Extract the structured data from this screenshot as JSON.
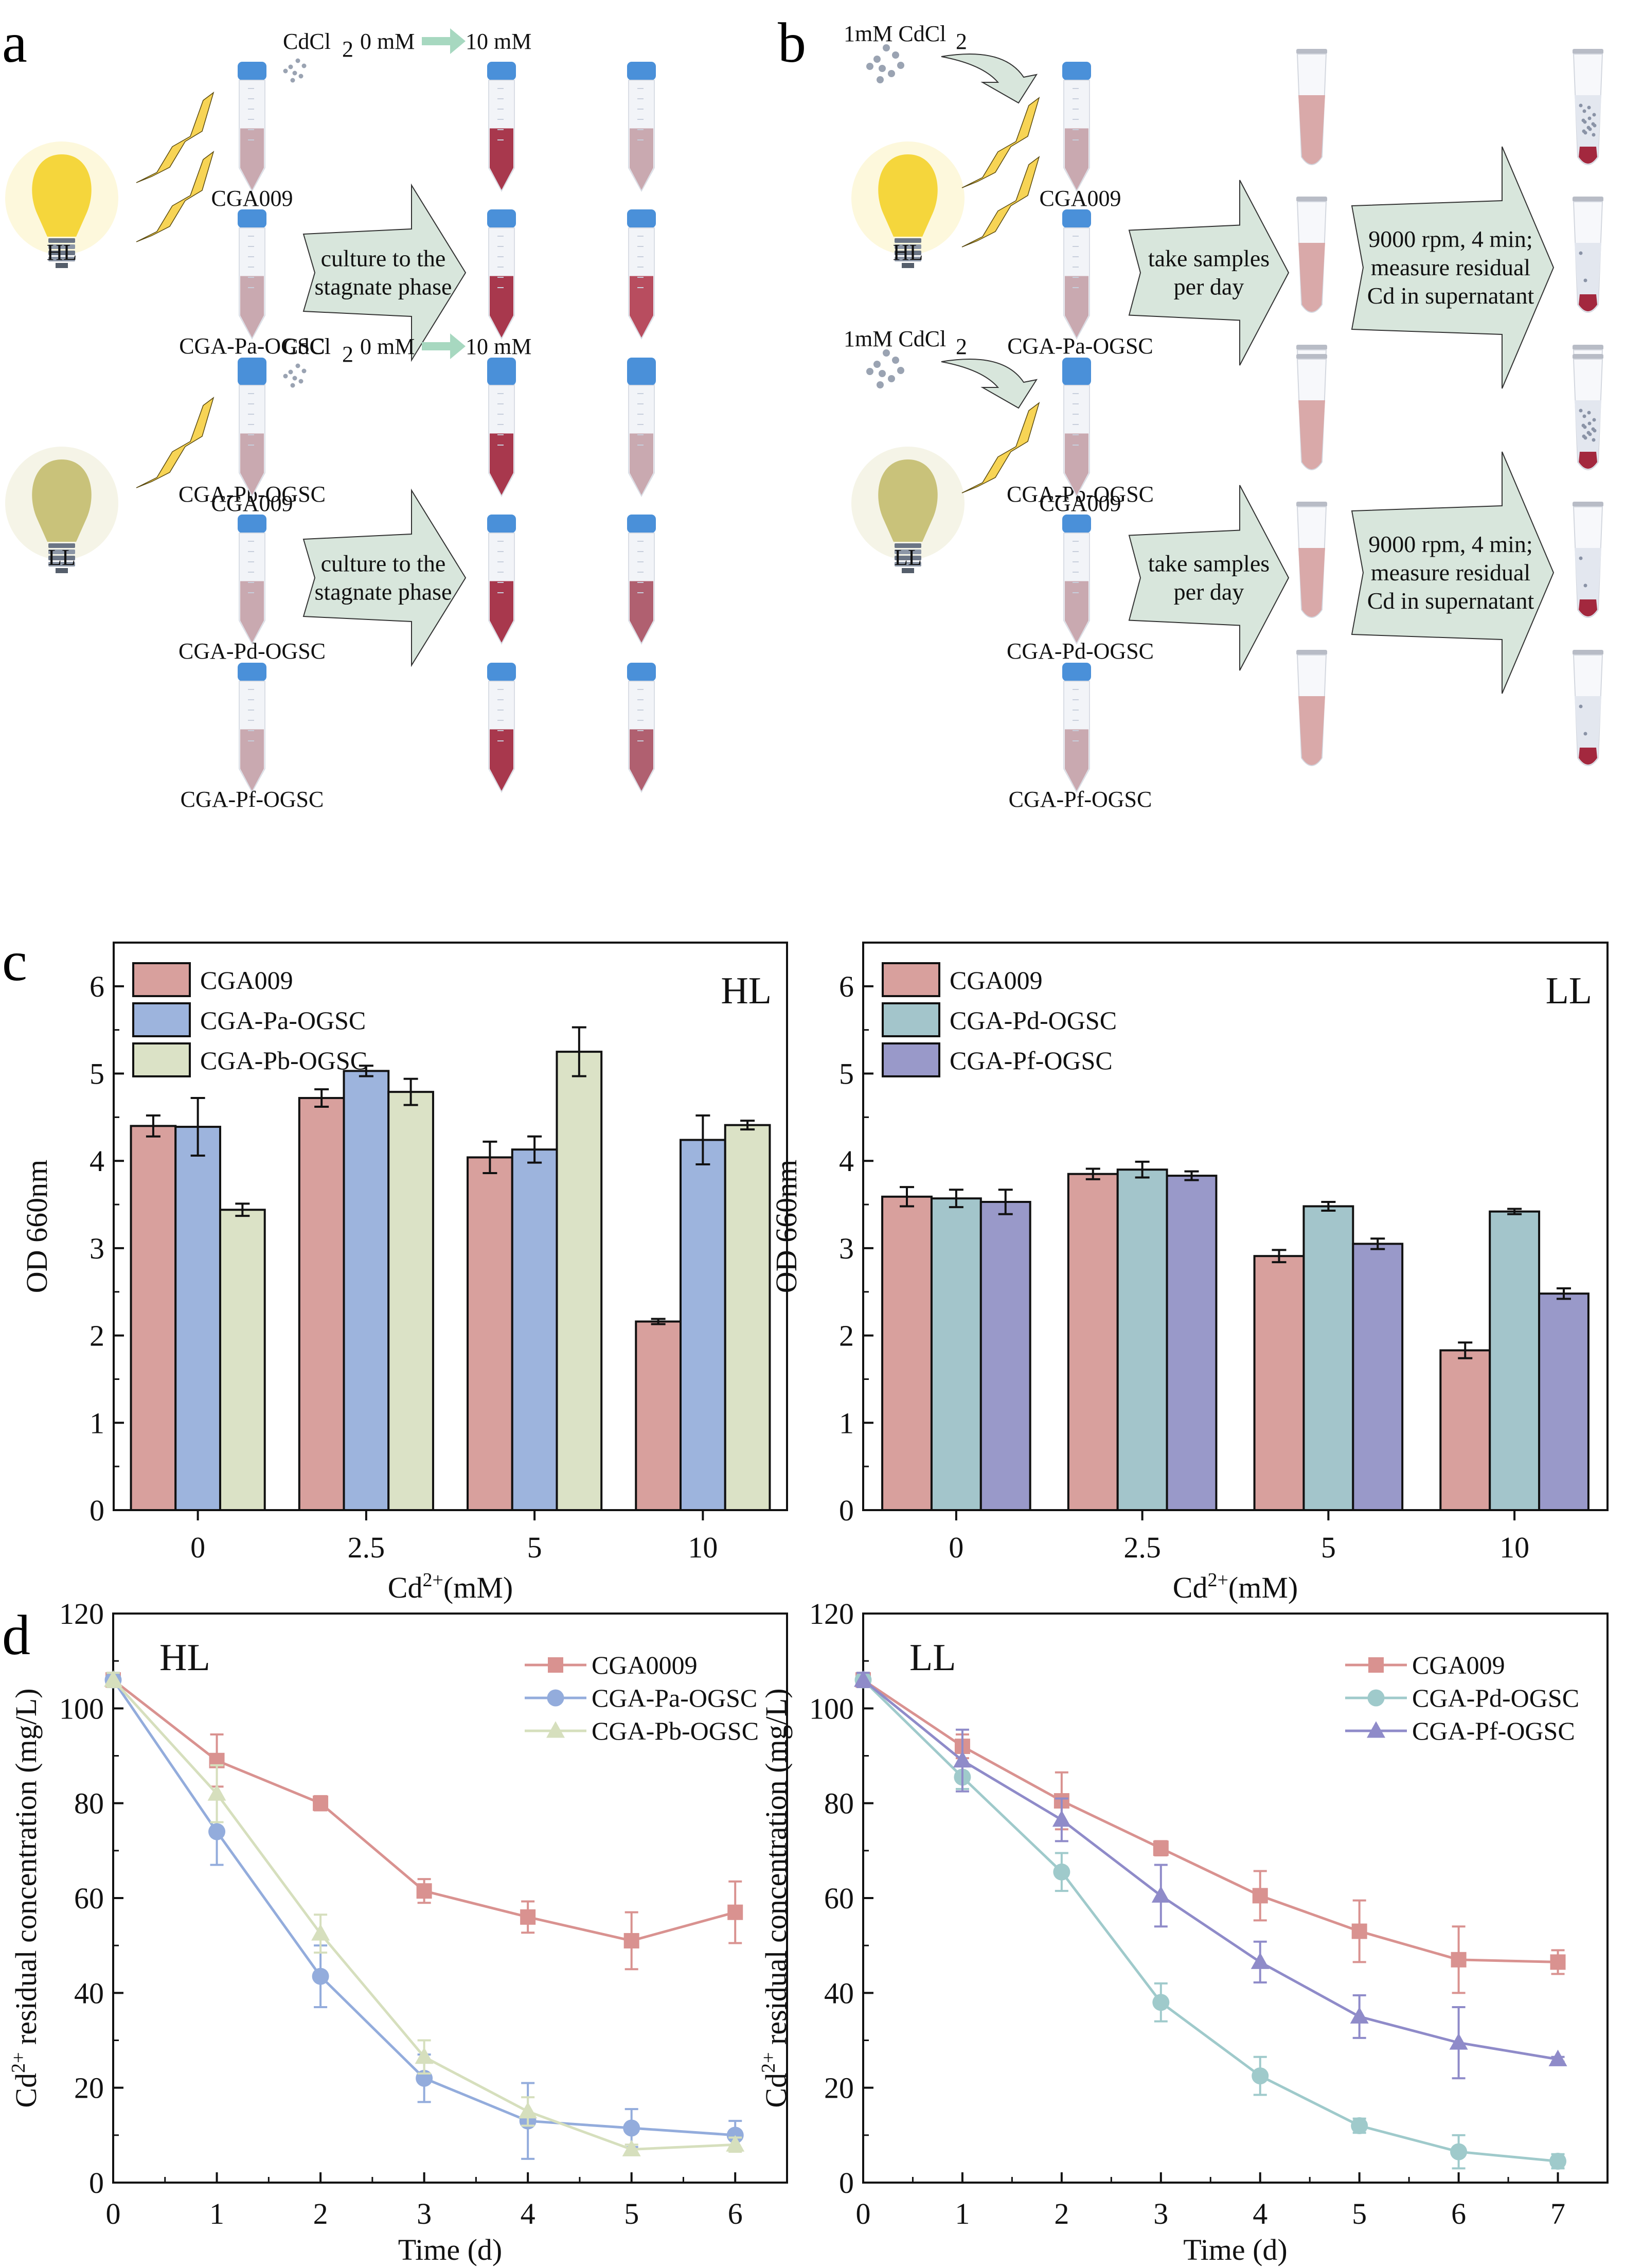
{
  "figure": {
    "panel_labels": [
      "a",
      "b",
      "c",
      "d"
    ]
  },
  "panel_a": {
    "rows": [
      {
        "light_label": "HL",
        "light_type": "high-light-bulb-icon",
        "light_color": "#f5d63c",
        "cdcl2_label": "CdCl",
        "cdcl2_sub": "2",
        "conc_from": "0 mM",
        "conc_to": "10 mM",
        "arrow_text": [
          "culture to the",
          "stagnate phase"
        ],
        "strains": [
          "CGA009",
          "CGA-Pa-OGSC",
          "CGA-Pb-OGSC"
        ]
      },
      {
        "light_label": "LL",
        "light_type": "low-light-bulb-icon",
        "light_color": "#c9c27a",
        "cdcl2_label": "CdCl",
        "cdcl2_sub": "2",
        "conc_from": "0 mM",
        "conc_to": "10 mM",
        "arrow_text": [
          "culture to the",
          "stagnate phase"
        ],
        "strains": [
          "CGA009",
          "CGA-Pd-OGSC",
          "CGA-Pf-OGSC"
        ]
      }
    ]
  },
  "panel_b": {
    "rows": [
      {
        "light_label": "HL",
        "cdcl2_label": "1mM CdCl",
        "cdcl2_sub": "2",
        "arrow1_text": [
          "take samples",
          "per day"
        ],
        "arrow2_text": [
          "9000 rpm, 4 min;",
          "measure residual",
          "Cd in supernatant"
        ],
        "strains": [
          "CGA009",
          "CGA-Pa-OGSC",
          "CGA-Pb-OGSC"
        ]
      },
      {
        "light_label": "LL",
        "cdcl2_label": "1mM CdCl",
        "cdcl2_sub": "2",
        "arrow1_text": [
          "take samples",
          "per day"
        ],
        "arrow2_text": [
          "9000 rpm, 4 min;",
          "measure residual",
          "Cd in supernatant"
        ],
        "strains": [
          "CGA009",
          "CGA-Pd-OGSC",
          "CGA-Pf-OGSC"
        ]
      }
    ]
  },
  "colors": {
    "tube_cap": "#4a90d9",
    "culture_dark": "#a8384d",
    "culture_light": "#c9a9b0",
    "arrow_fill": "#d8e6dc",
    "lightning": "#f7d455",
    "bar_cga009": "#d8a09d",
    "bar_pa": "#9db4dd",
    "bar_pb": "#dbe2c6",
    "bar_pd": "#a3c5cb",
    "bar_pf": "#9999c9",
    "line_cga009": "#d99290",
    "line_pa": "#93acdc",
    "line_pb": "#d6dfbd",
    "line_pd": "#9fcacb",
    "line_pf": "#8f8bc9"
  },
  "chart_data": [
    {
      "id": "c-HL",
      "type": "bar",
      "corner_label": "HL",
      "categories": [
        "0",
        "2.5",
        "5",
        "10"
      ],
      "xlabel": "Cd2+(mM)",
      "xlabel_main": "Cd",
      "xlabel_sup": "2+",
      "xlabel_tail": "(mM)",
      "ylabel": "OD 660nm",
      "ylim": [
        0,
        6.5
      ],
      "yticks": [
        0,
        1,
        2,
        3,
        4,
        5,
        6
      ],
      "legend_position": "top-left",
      "series": [
        {
          "name": "CGA009",
          "color_key": "bar_cga009",
          "values": [
            4.4,
            4.72,
            4.04,
            2.16
          ],
          "errors": [
            0.12,
            0.1,
            0.18,
            0.03
          ]
        },
        {
          "name": "CGA-Pa-OGSC",
          "color_key": "bar_pa",
          "values": [
            4.39,
            5.03,
            4.13,
            4.24
          ],
          "errors": [
            0.33,
            0.06,
            0.15,
            0.28
          ]
        },
        {
          "name": "CGA-Pb-OGSC",
          "color_key": "bar_pb",
          "values": [
            3.44,
            4.79,
            5.25,
            4.41
          ],
          "errors": [
            0.07,
            0.15,
            0.28,
            0.05
          ]
        }
      ]
    },
    {
      "id": "c-LL",
      "type": "bar",
      "corner_label": "LL",
      "categories": [
        "0",
        "2.5",
        "5",
        "10"
      ],
      "xlabel": "Cd2+(mM)",
      "xlabel_main": "Cd",
      "xlabel_sup": "2+",
      "xlabel_tail": "(mM)",
      "ylabel": "OD 660nm",
      "ylim": [
        0,
        6.5
      ],
      "yticks": [
        0,
        1,
        2,
        3,
        4,
        5,
        6
      ],
      "legend_position": "top-left",
      "series": [
        {
          "name": "CGA009",
          "color_key": "bar_cga009",
          "values": [
            3.59,
            3.85,
            2.91,
            1.83
          ],
          "errors": [
            0.11,
            0.06,
            0.07,
            0.09
          ]
        },
        {
          "name": "CGA-Pd-OGSC",
          "color_key": "bar_pd",
          "values": [
            3.57,
            3.9,
            3.48,
            3.42
          ],
          "errors": [
            0.1,
            0.09,
            0.05,
            0.03
          ]
        },
        {
          "name": "CGA-Pf-OGSC",
          "color_key": "bar_pf",
          "values": [
            3.53,
            3.83,
            3.05,
            2.48
          ],
          "errors": [
            0.14,
            0.05,
            0.06,
            0.06
          ]
        }
      ]
    },
    {
      "id": "d-HL",
      "type": "line",
      "corner_label": "HL",
      "x": [
        0,
        1,
        2,
        3,
        4,
        5,
        6
      ],
      "xlabel": "Time (d)",
      "ylabel": "Cd2+ residual concentration (mg/L)",
      "ylabel_main": "Cd",
      "ylabel_sup": "2+",
      "ylabel_tail": " residual concentration (mg/L)",
      "xlim": [
        0,
        6.5
      ],
      "ylim": [
        0,
        120
      ],
      "xticks": [
        0,
        1,
        2,
        3,
        4,
        5,
        6
      ],
      "yticks": [
        0,
        20,
        40,
        60,
        80,
        100,
        120
      ],
      "legend_position": "top-right",
      "series": [
        {
          "name": "CGA0009",
          "marker": "square",
          "color_key": "line_cga009",
          "values": [
            106,
            89,
            80,
            61.5,
            56,
            51,
            57
          ],
          "errors": [
            1.5,
            5.5,
            1.5,
            2.5,
            3.3,
            6,
            6.5
          ]
        },
        {
          "name": "CGA-Pa-OGSC",
          "marker": "circle",
          "color_key": "line_pa",
          "values": [
            106,
            74,
            43.5,
            22,
            13,
            11.5,
            10
          ],
          "errors": [
            1.5,
            7,
            6.5,
            5,
            8,
            4,
            3
          ]
        },
        {
          "name": "CGA-Pb-OGSC",
          "marker": "triangle",
          "color_key": "line_pb",
          "values": [
            106,
            82,
            52.5,
            26.5,
            15,
            7,
            8
          ],
          "errors": [
            1.5,
            6,
            4,
            3.5,
            3,
            1,
            1.5
          ]
        }
      ]
    },
    {
      "id": "d-LL",
      "type": "line",
      "corner_label": "LL",
      "x": [
        0,
        1,
        2,
        3,
        4,
        5,
        6,
        7
      ],
      "xlabel": "Time (d)",
      "ylabel": "Cd2+ residual concentration (mg/L)",
      "ylabel_main": "Cd",
      "ylabel_sup": "2+",
      "ylabel_tail": " residual concentration (mg/L)",
      "xlim": [
        0,
        7.5
      ],
      "ylim": [
        0,
        120
      ],
      "xticks": [
        0,
        1,
        2,
        3,
        4,
        5,
        6,
        7
      ],
      "yticks": [
        0,
        20,
        40,
        60,
        80,
        100,
        120
      ],
      "legend_position": "top-right",
      "series": [
        {
          "name": "CGA009",
          "marker": "square",
          "color_key": "line_cga009",
          "values": [
            106,
            92,
            80.5,
            70.5,
            60.5,
            53,
            47,
            46.5
          ],
          "errors": [
            1.5,
            2.5,
            6,
            1.5,
            5.2,
            6.5,
            7,
            2.5
          ]
        },
        {
          "name": "CGA-Pd-OGSC",
          "marker": "circle",
          "color_key": "line_pd",
          "values": [
            106,
            85.5,
            65.5,
            38,
            22.5,
            12,
            6.5,
            4.5
          ],
          "errors": [
            1.5,
            2.5,
            4,
            4,
            4,
            1.5,
            3.5,
            1.5
          ]
        },
        {
          "name": "CGA-Pf-OGSC",
          "marker": "triangle",
          "color_key": "line_pf",
          "values": [
            106,
            89,
            76.5,
            60.5,
            46.5,
            35,
            29.5,
            26
          ],
          "errors": [
            1.5,
            6.5,
            4.5,
            6.5,
            4.3,
            4.5,
            7.5,
            0.5
          ]
        }
      ]
    }
  ]
}
